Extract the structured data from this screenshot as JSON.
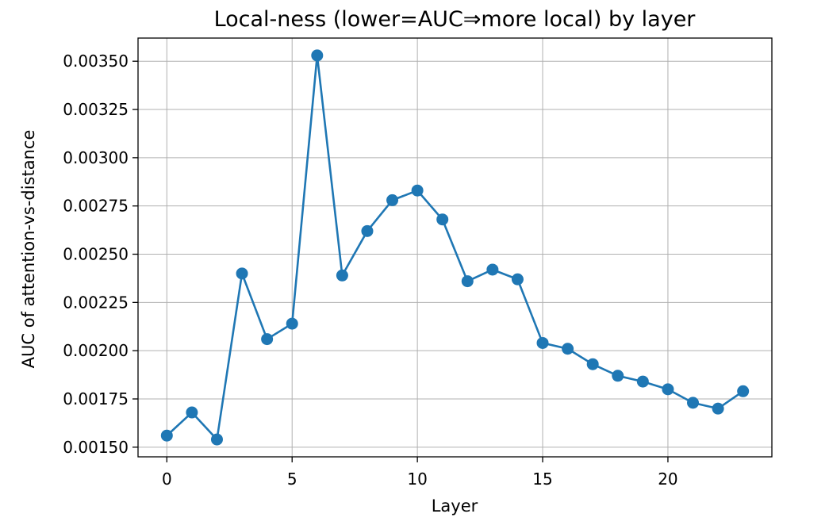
{
  "chart_data": {
    "type": "line",
    "title": "Local-ness (lower=AUC⇒more local) by layer",
    "xlabel": "Layer",
    "ylabel": "AUC of attention-vs-distance",
    "xlim": [
      -1.15,
      24.15
    ],
    "ylim": [
      0.00145,
      0.00362
    ],
    "xticks": [
      0,
      5,
      10,
      15,
      20
    ],
    "xtick_labels": [
      "0",
      "5",
      "10",
      "15",
      "20"
    ],
    "yticks": [
      0.0015,
      0.00175,
      0.002,
      0.00225,
      0.0025,
      0.00275,
      0.003,
      0.00325,
      0.0035
    ],
    "ytick_labels": [
      "0.00150",
      "0.00175",
      "0.00200",
      "0.00225",
      "0.00250",
      "0.00275",
      "0.00300",
      "0.00325",
      "0.00350"
    ],
    "grid": true,
    "line_color": "#1f77b4",
    "series": [
      {
        "x": [
          0,
          1,
          2,
          3,
          4,
          5,
          6,
          7,
          8,
          9,
          10,
          11,
          12,
          13,
          14,
          15,
          16,
          17,
          18,
          19,
          20,
          21,
          22,
          23
        ],
        "y": [
          0.00156,
          0.00168,
          0.00154,
          0.0024,
          0.00206,
          0.00214,
          0.00353,
          0.00239,
          0.00262,
          0.00278,
          0.00283,
          0.00268,
          0.00236,
          0.00242,
          0.00237,
          0.00204,
          0.00201,
          0.00193,
          0.00187,
          0.00184,
          0.0018,
          0.00173,
          0.0017,
          0.00179
        ]
      }
    ]
  }
}
